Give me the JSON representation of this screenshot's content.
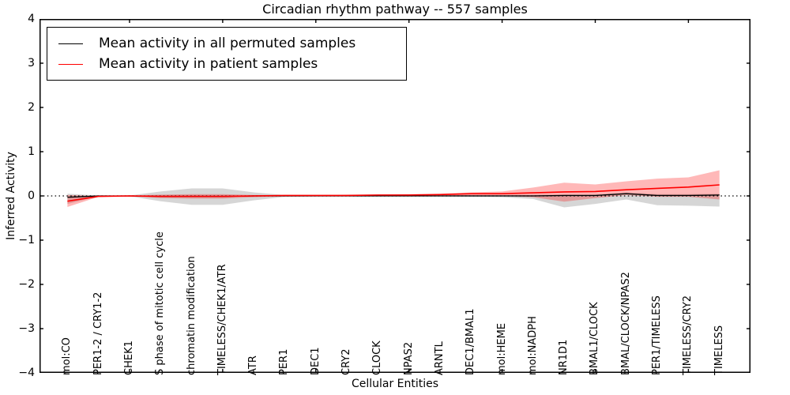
{
  "chart_data": {
    "type": "line",
    "title": "Circadian rhythm pathway -- 557 samples",
    "xlabel": "Cellular Entities",
    "ylabel": "Inferred Activity",
    "ylim": [
      -4,
      4
    ],
    "yticks": [
      4,
      3,
      2,
      1,
      0,
      -1,
      -2,
      -3,
      -4
    ],
    "xtick_indices": [
      2,
      5,
      8,
      11,
      14,
      17,
      20
    ],
    "grid": false,
    "zero_line": true,
    "legend_position": "upper-left",
    "categories": [
      "mol:CO",
      "PER1-2 / CRY1-2",
      "CHEK1",
      "S phase of mitotic cell cycle",
      "chromatin modification",
      "TIMELESS/CHEK1/ATR",
      "ATR",
      "PER1",
      "DEC1",
      "CRY2",
      "CLOCK",
      "NPAS2",
      "ARNTL",
      "DEC1/BMAL1",
      "mol:HEME",
      "mol:NADPH",
      "NR1D1",
      "BMAL1/CLOCK",
      "BMAL/CLOCK/NPAS2",
      "PER1/TIMELESS",
      "TIMELESS/CRY2",
      "TIMELESS"
    ],
    "series": [
      {
        "name": "Mean activity in all permuted samples",
        "color": "#000000",
        "band_color": "rgba(128,128,128,0.32)",
        "values": [
          -0.03,
          0,
          0,
          -0.01,
          -0.01,
          -0.01,
          0,
          0,
          0,
          0,
          0,
          0,
          0,
          0,
          0,
          0,
          0.01,
          0.01,
          0.05,
          0.01,
          0.01,
          0.02
        ],
        "band_upper": [
          0.05,
          0.01,
          0.01,
          0.1,
          0.17,
          0.17,
          0.08,
          0.02,
          0.01,
          0.01,
          0.01,
          0.01,
          0.01,
          0.02,
          0.02,
          0.03,
          0.03,
          0.03,
          0.08,
          0.04,
          0.04,
          0.05
        ],
        "band_lower": [
          -0.18,
          -0.01,
          -0.01,
          -0.12,
          -0.2,
          -0.2,
          -0.1,
          -0.02,
          -0.01,
          -0.01,
          -0.01,
          -0.01,
          -0.01,
          -0.02,
          -0.03,
          -0.07,
          -0.26,
          -0.18,
          -0.08,
          -0.21,
          -0.22,
          -0.24
        ]
      },
      {
        "name": "Mean activity in patient samples",
        "color": "#ff0000",
        "band_color": "rgba(255,0,0,0.28)",
        "values": [
          -0.12,
          -0.01,
          0,
          -0.01,
          -0.01,
          -0.01,
          0,
          0.01,
          0.01,
          0.01,
          0.02,
          0.02,
          0.03,
          0.05,
          0.05,
          0.07,
          0.09,
          0.1,
          0.14,
          0.17,
          0.2,
          0.25
        ],
        "band_upper": [
          0.02,
          0,
          0.01,
          0.03,
          0.04,
          0.04,
          0.02,
          0.02,
          0.02,
          0.03,
          0.03,
          0.04,
          0.05,
          0.08,
          0.1,
          0.19,
          0.3,
          0.26,
          0.33,
          0.39,
          0.42,
          0.58
        ],
        "band_lower": [
          -0.25,
          -0.02,
          -0.01,
          -0.05,
          -0.06,
          -0.06,
          -0.03,
          -0.01,
          -0.01,
          -0.01,
          -0.01,
          -0.01,
          -0.01,
          0,
          0,
          -0.03,
          -0.13,
          -0.05,
          0.02,
          -0.02,
          -0.02,
          -0.08
        ]
      }
    ]
  }
}
